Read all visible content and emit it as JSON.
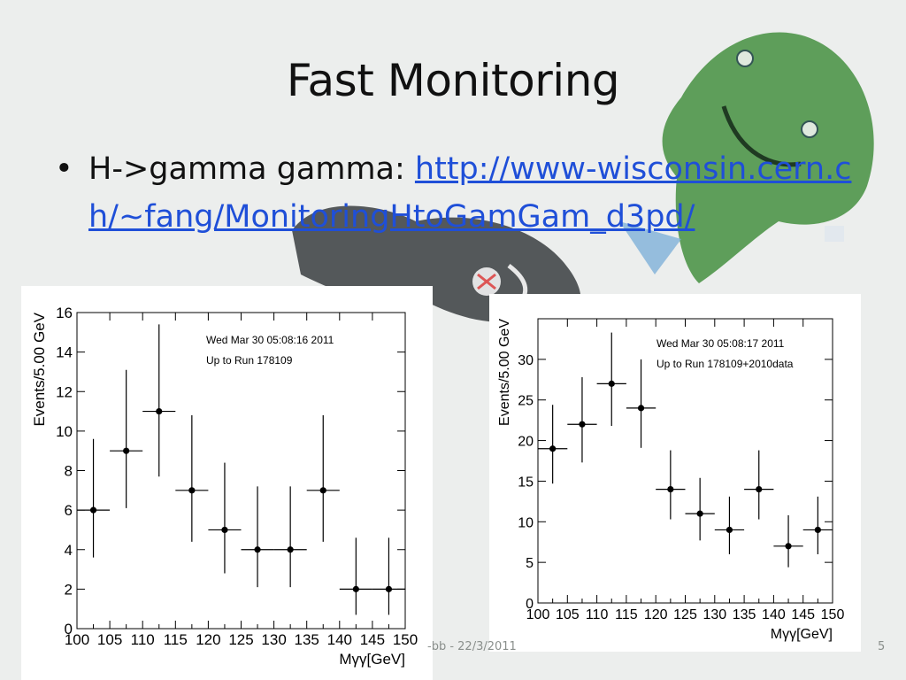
{
  "slide": {
    "title": "Fast Monitoring",
    "bullet_symbol": "•",
    "bullet_prefix": "H->gamma gamma: ",
    "bullet_link": "http://www-wisconsin.cern.ch/~fang/MonitoringHtoGamGam_d3pd/",
    "footer_text": "-bb - 22/3/2011",
    "page_number": "5"
  },
  "colors": {
    "link": "#1f4fd8",
    "marker": "#000000",
    "axis": "#000000"
  },
  "chart_data": [
    {
      "type": "scatter",
      "title": "",
      "annotation_lines": [
        "Wed Mar 30 05:08:16 2011",
        "Up to Run 178109"
      ],
      "xlabel": "Mγγ[GeV]",
      "ylabel": "Events/5.00 GeV",
      "xlim": [
        100,
        150
      ],
      "ylim": [
        0,
        16
      ],
      "xticks": [
        100,
        105,
        110,
        115,
        120,
        125,
        130,
        135,
        140,
        145,
        150
      ],
      "yticks": [
        0,
        2,
        4,
        6,
        8,
        10,
        12,
        14,
        16
      ],
      "grid": false,
      "x": [
        102.5,
        107.5,
        112.5,
        117.5,
        122.5,
        127.5,
        132.5,
        137.5,
        142.5,
        147.5
      ],
      "y": [
        6,
        9,
        11,
        7,
        5,
        4,
        4,
        7,
        2,
        2
      ],
      "yerr_low": [
        2.4,
        2.9,
        3.3,
        2.6,
        2.2,
        1.9,
        1.9,
        2.6,
        1.3,
        1.3
      ],
      "yerr_high": [
        3.6,
        4.1,
        4.4,
        3.8,
        3.4,
        3.2,
        3.2,
        3.8,
        2.6,
        2.6
      ],
      "xerr": 2.5
    },
    {
      "type": "scatter",
      "title": "",
      "annotation_lines": [
        "Wed Mar 30 05:08:17 2011",
        "Up to Run 178109+2010data"
      ],
      "xlabel": "Mγγ[GeV]",
      "ylabel": "Events/5.00 GeV",
      "xlim": [
        100,
        150
      ],
      "ylim": [
        0,
        35
      ],
      "xticks": [
        100,
        105,
        110,
        115,
        120,
        125,
        130,
        135,
        140,
        145,
        150
      ],
      "yticks": [
        0,
        5,
        10,
        15,
        20,
        25,
        30
      ],
      "grid": false,
      "x": [
        102.5,
        107.5,
        112.5,
        117.5,
        122.5,
        127.5,
        132.5,
        137.5,
        142.5,
        147.5
      ],
      "y": [
        19,
        22,
        27,
        24,
        14,
        11,
        9,
        14,
        7,
        9
      ],
      "yerr_low": [
        4.3,
        4.7,
        5.2,
        4.9,
        3.7,
        3.3,
        3.0,
        3.7,
        2.6,
        3.0
      ],
      "yerr_high": [
        5.4,
        5.8,
        6.3,
        6.0,
        4.8,
        4.4,
        4.1,
        4.8,
        3.8,
        4.1
      ],
      "xerr": 2.5
    }
  ]
}
